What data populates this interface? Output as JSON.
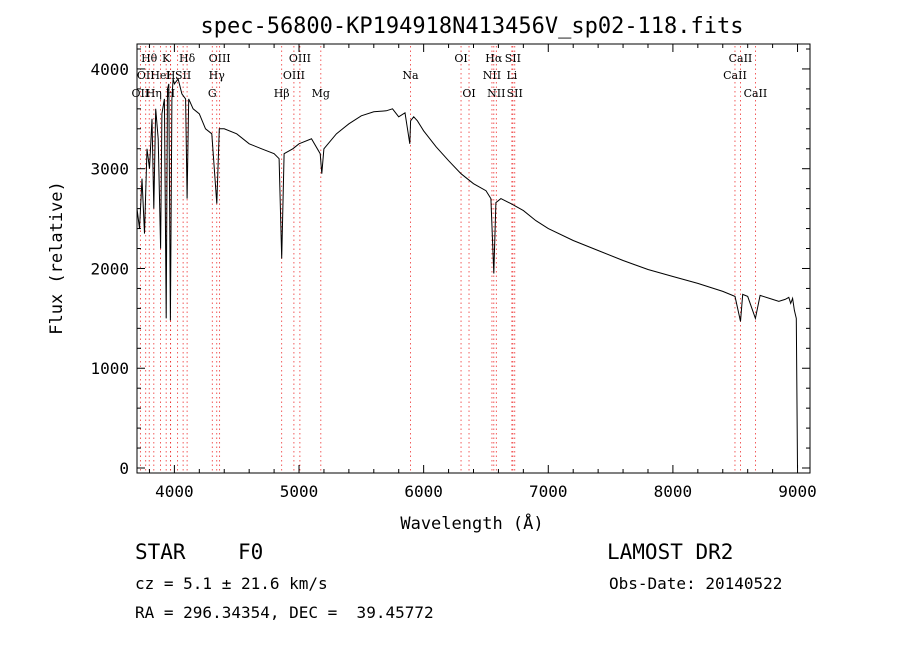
{
  "chart_data": {
    "type": "line",
    "title": "spec-56800-KP194918N413456V_sp02-118.fits",
    "xlabel": "Wavelength (Å)",
    "ylabel": "Flux (relative)",
    "xlim": [
      3700,
      9100
    ],
    "ylim": [
      -50,
      4250
    ],
    "xticks": [
      4000,
      5000,
      6000,
      7000,
      8000,
      9000
    ],
    "yticks": [
      0,
      1000,
      2000,
      3000,
      4000
    ],
    "grid": false,
    "series": [
      {
        "x": [
          3700,
          3720,
          3740,
          3760,
          3780,
          3800,
          3820,
          3835,
          3850,
          3870,
          3889,
          3900,
          3920,
          3934,
          3945,
          3955,
          3968,
          3980,
          3990,
          4000,
          4030,
          4060,
          4090,
          4102,
          4115,
          4150,
          4200,
          4250,
          4300,
          4340,
          4360,
          4400,
          4500,
          4600,
          4700,
          4800,
          4840,
          4861,
          4880,
          4950,
          5000,
          5100,
          5170,
          5183,
          5200,
          5300,
          5400,
          5500,
          5600,
          5700,
          5750,
          5800,
          5850,
          5889,
          5895,
          5920,
          5950,
          6000,
          6100,
          6200,
          6300,
          6400,
          6500,
          6540,
          6563,
          6580,
          6620,
          6700,
          6800,
          6900,
          7000,
          7200,
          7400,
          7600,
          7800,
          8000,
          8200,
          8400,
          8498,
          8542,
          8560,
          8600,
          8662,
          8700,
          8800,
          8850,
          8900,
          8930,
          8945,
          8960,
          8975,
          8990,
          9000
        ],
        "y": [
          2600,
          2400,
          2900,
          2350,
          3200,
          3000,
          3500,
          2600,
          3600,
          3300,
          2200,
          3550,
          3700,
          1500,
          3800,
          3850,
          1480,
          3700,
          3900,
          3850,
          3900,
          3750,
          3700,
          2700,
          3700,
          3600,
          3550,
          3400,
          3350,
          2650,
          3400,
          3400,
          3350,
          3250,
          3200,
          3150,
          3100,
          2100,
          3150,
          3200,
          3250,
          3300,
          3150,
          2950,
          3200,
          3350,
          3450,
          3530,
          3570,
          3580,
          3600,
          3520,
          3560,
          3250,
          3480,
          3520,
          3480,
          3380,
          3220,
          3080,
          2950,
          2850,
          2780,
          2700,
          1950,
          2660,
          2700,
          2650,
          2580,
          2480,
          2400,
          2280,
          2180,
          2080,
          1990,
          1920,
          1850,
          1770,
          1720,
          1470,
          1740,
          1720,
          1500,
          1730,
          1690,
          1670,
          1690,
          1710,
          1650,
          1700,
          1580,
          1500,
          0
        ]
      }
    ],
    "lines": [
      {
        "wl": 3727,
        "top": "",
        "mid": "",
        "bot": "OII"
      },
      {
        "wl": 3770,
        "top": "",
        "mid": "OII",
        "bot": ""
      },
      {
        "wl": 3798,
        "top": "Hθ",
        "mid": "",
        "bot": ""
      },
      {
        "wl": 3835,
        "top": "",
        "mid": "",
        "bot": "Hη"
      },
      {
        "wl": 3889,
        "top": "",
        "mid": "HeI",
        "bot": ""
      },
      {
        "wl": 3934,
        "top": "K",
        "mid": "",
        "bot": ""
      },
      {
        "wl": 3968,
        "top": "",
        "mid": "",
        "bot": "H"
      },
      {
        "wl": 3970,
        "top": "",
        "mid": "H",
        "bot": ""
      },
      {
        "wl": 4026,
        "top": "",
        "mid": "",
        "bot": ""
      },
      {
        "wl": 4102,
        "top": "Hδ",
        "mid": "",
        "bot": ""
      },
      {
        "wl": 4070,
        "top": "",
        "mid": "SII",
        "bot": ""
      },
      {
        "wl": 4304,
        "top": "",
        "mid": "",
        "bot": "G"
      },
      {
        "wl": 4340,
        "top": "",
        "mid": "Hγ",
        "bot": ""
      },
      {
        "wl": 4363,
        "top": "OIII",
        "mid": "",
        "bot": ""
      },
      {
        "wl": 4861,
        "top": "",
        "mid": "",
        "bot": "Hβ"
      },
      {
        "wl": 4959,
        "top": "",
        "mid": "OIII",
        "bot": ""
      },
      {
        "wl": 5007,
        "top": "OIII",
        "mid": "",
        "bot": ""
      },
      {
        "wl": 5175,
        "top": "",
        "mid": "",
        "bot": "Mg"
      },
      {
        "wl": 5894,
        "top": "",
        "mid": "Na",
        "bot": ""
      },
      {
        "wl": 6300,
        "top": "OI",
        "mid": "",
        "bot": ""
      },
      {
        "wl": 6364,
        "top": "",
        "mid": "",
        "bot": "OI"
      },
      {
        "wl": 6548,
        "top": "",
        "mid": "NII",
        "bot": ""
      },
      {
        "wl": 6563,
        "top": "Hα",
        "mid": "",
        "bot": ""
      },
      {
        "wl": 6583,
        "top": "",
        "mid": "",
        "bot": "NII"
      },
      {
        "wl": 6708,
        "top": "",
        "mid": "Li",
        "bot": ""
      },
      {
        "wl": 6716,
        "top": "SII",
        "mid": "",
        "bot": ""
      },
      {
        "wl": 6731,
        "top": "",
        "mid": "",
        "bot": "SII"
      },
      {
        "wl": 8498,
        "top": "",
        "mid": "CaII",
        "bot": ""
      },
      {
        "wl": 8542,
        "top": "CaII",
        "mid": "",
        "bot": ""
      },
      {
        "wl": 8662,
        "top": "",
        "mid": "",
        "bot": "CaII"
      }
    ]
  },
  "info": {
    "class_label": "STAR",
    "subclass": "F0",
    "survey": "LAMOST DR2",
    "cz": "cz = 5.1 ± 21.6 km/s",
    "obs_date": "Obs-Date: 20140522",
    "radec": "RA = 296.34354, DEC =  39.45772"
  }
}
